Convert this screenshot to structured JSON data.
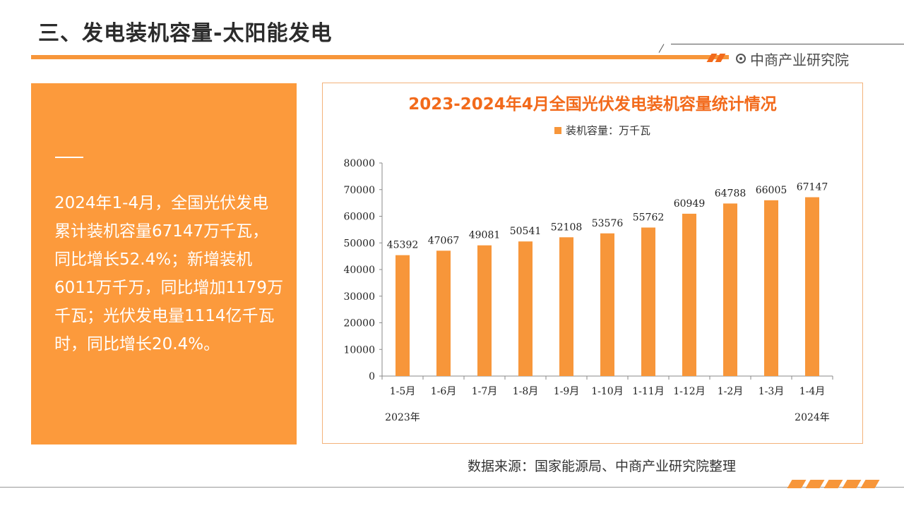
{
  "header": {
    "title": "三、发电装机容量-太阳能发电",
    "brand": "中商产业研究院"
  },
  "summary": {
    "text": "2024年1-4月，全国光伏发电累计装机容量67147万千瓦，同比增长52.4%；新增装机6011万千万，同比增加1179万千瓦；光伏发电量1114亿千瓦时，同比增长20.4%。"
  },
  "source": "数据来源：国家能源局、中商产业研究院整理",
  "colors": {
    "accent": "#f7963a",
    "panel": "#fc9a3c",
    "title": "#f26a1b"
  },
  "chart_data": {
    "type": "bar",
    "title": "2023-2024年4月全国光伏发电装机容量统计情况",
    "categories": [
      "1-5月",
      "1-6月",
      "1-7月",
      "1-8月",
      "1-9月",
      "1-10月",
      "1-11月",
      "1-12月",
      "1-2月",
      "1-3月",
      "1-4月"
    ],
    "series": [
      {
        "name": "装机容量：万千瓦",
        "values": [
          45392,
          47067,
          49081,
          50541,
          52108,
          53576,
          55762,
          60949,
          64788,
          66005,
          67147
        ]
      }
    ],
    "year_labels": [
      "2023年",
      "2024年"
    ],
    "ylim": [
      0,
      80000
    ],
    "yticks": [
      0,
      10000,
      20000,
      30000,
      40000,
      50000,
      60000,
      70000,
      80000
    ],
    "legend_position": "top-center",
    "grid": false
  }
}
